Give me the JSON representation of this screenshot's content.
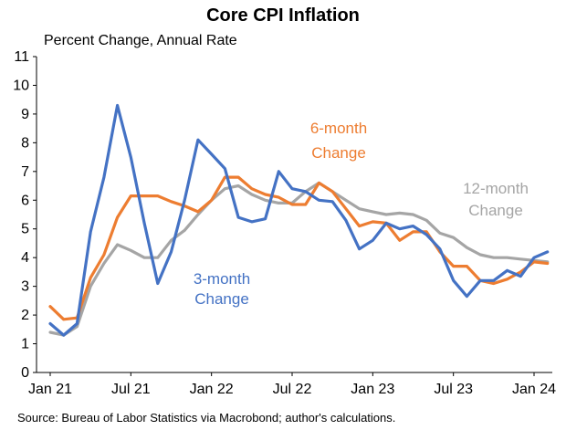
{
  "chart_data": {
    "type": "line",
    "title": "Core CPI Inflation",
    "subtitle": "Percent Change, Annual Rate",
    "source": "Source: Bureau of Labor Statistics via Macrobond; author's calculations.",
    "ylim": [
      0,
      11
    ],
    "yticks": [
      "0",
      "1",
      "2",
      "3",
      "4",
      "5",
      "6",
      "7",
      "8",
      "9",
      "10",
      "11"
    ],
    "xlim": [
      "2021-01",
      "2024-02"
    ],
    "xticks": [
      {
        "label": "Jan 21",
        "x": "2021-01"
      },
      {
        "label": "Jul 21",
        "x": "2021-07"
      },
      {
        "label": "Jan 22",
        "x": "2022-01"
      },
      {
        "label": "Jul 22",
        "x": "2022-07"
      },
      {
        "label": "Jan 23",
        "x": "2023-01"
      },
      {
        "label": "Jul 23",
        "x": "2023-07"
      },
      {
        "label": "Jan 24",
        "x": "2024-01"
      }
    ],
    "grid": false,
    "series": [
      {
        "name": "3-month Change",
        "color": "#4472c4",
        "label_lines": [
          "3-month",
          "Change"
        ],
        "points": [
          [
            "2021-01",
            1.7
          ],
          [
            "2021-02",
            1.3
          ],
          [
            "2021-03",
            1.7
          ],
          [
            "2021-04",
            4.9
          ],
          [
            "2021-05",
            6.8
          ],
          [
            "2021-06",
            9.3
          ],
          [
            "2021-07",
            7.5
          ],
          [
            "2021-08",
            5.2
          ],
          [
            "2021-09",
            3.1
          ],
          [
            "2021-10",
            4.2
          ],
          [
            "2021-11",
            6.0
          ],
          [
            "2021-12",
            8.1
          ],
          [
            "2021-13",
            7.6
          ],
          [
            "2022-02",
            7.1
          ],
          [
            "2022-03",
            5.4
          ],
          [
            "2022-04",
            5.25
          ],
          [
            "2022-05",
            5.35
          ],
          [
            "2022-06",
            7.0
          ],
          [
            "2022-07",
            6.4
          ],
          [
            "2022-08",
            6.3
          ],
          [
            "2022-09",
            6.0
          ],
          [
            "2022-10",
            5.95
          ],
          [
            "2022-11",
            5.3
          ],
          [
            "2022-12",
            4.3
          ],
          [
            "2023-01",
            4.6
          ],
          [
            "2023-02",
            5.2
          ],
          [
            "2023-03",
            5.0
          ],
          [
            "2023-04",
            5.1
          ],
          [
            "2023-05",
            4.8
          ],
          [
            "2023-06",
            4.3
          ],
          [
            "2023-07",
            3.2
          ],
          [
            "2023-08",
            2.65
          ],
          [
            "2023-09",
            3.2
          ],
          [
            "2023-10",
            3.2
          ],
          [
            "2023-11",
            3.55
          ],
          [
            "2023-12",
            3.35
          ],
          [
            "2024-01",
            4.0
          ],
          [
            "2024-02",
            4.2
          ]
        ]
      },
      {
        "name": "6-month Change",
        "color": "#ed7d31",
        "label_lines": [
          "6-month",
          "Change"
        ],
        "points": [
          [
            "2021-01",
            2.3
          ],
          [
            "2021-02",
            1.85
          ],
          [
            "2021-03",
            1.9
          ],
          [
            "2021-04",
            3.3
          ],
          [
            "2021-05",
            4.1
          ],
          [
            "2021-06",
            5.4
          ],
          [
            "2021-07",
            6.15
          ],
          [
            "2021-08",
            6.15
          ],
          [
            "2021-09",
            6.15
          ],
          [
            "2021-10",
            5.95
          ],
          [
            "2021-11",
            5.8
          ],
          [
            "2021-12",
            5.6
          ],
          [
            "2021-13",
            6.0
          ],
          [
            "2022-02",
            6.8
          ],
          [
            "2022-03",
            6.8
          ],
          [
            "2022-04",
            6.4
          ],
          [
            "2022-05",
            6.2
          ],
          [
            "2022-06",
            6.1
          ],
          [
            "2022-07",
            5.85
          ],
          [
            "2022-08",
            5.85
          ],
          [
            "2022-09",
            6.6
          ],
          [
            "2022-10",
            6.3
          ],
          [
            "2022-11",
            5.7
          ],
          [
            "2022-12",
            5.1
          ],
          [
            "2023-01",
            5.25
          ],
          [
            "2023-02",
            5.2
          ],
          [
            "2023-03",
            4.6
          ],
          [
            "2023-04",
            4.9
          ],
          [
            "2023-05",
            4.9
          ],
          [
            "2023-06",
            4.2
          ],
          [
            "2023-07",
            3.7
          ],
          [
            "2023-08",
            3.7
          ],
          [
            "2023-09",
            3.2
          ],
          [
            "2023-10",
            3.1
          ],
          [
            "2023-11",
            3.25
          ],
          [
            "2023-12",
            3.5
          ],
          [
            "2024-01",
            3.85
          ],
          [
            "2024-02",
            3.8
          ]
        ]
      },
      {
        "name": "12-month Change",
        "color": "#a5a5a5",
        "label_lines": [
          "12-month",
          "Change"
        ],
        "points": [
          [
            "2021-01",
            1.4
          ],
          [
            "2021-02",
            1.3
          ],
          [
            "2021-03",
            1.6
          ],
          [
            "2021-04",
            3.0
          ],
          [
            "2021-05",
            3.8
          ],
          [
            "2021-06",
            4.45
          ],
          [
            "2021-07",
            4.25
          ],
          [
            "2021-08",
            4.0
          ],
          [
            "2021-09",
            4.0
          ],
          [
            "2021-10",
            4.6
          ],
          [
            "2021-11",
            4.95
          ],
          [
            "2021-12",
            5.5
          ],
          [
            "2021-13",
            6.0
          ],
          [
            "2022-02",
            6.4
          ],
          [
            "2022-03",
            6.5
          ],
          [
            "2022-04",
            6.2
          ],
          [
            "2022-05",
            6.0
          ],
          [
            "2022-06",
            5.9
          ],
          [
            "2022-07",
            5.9
          ],
          [
            "2022-08",
            6.3
          ],
          [
            "2022-09",
            6.6
          ],
          [
            "2022-10",
            6.3
          ],
          [
            "2022-11",
            6.0
          ],
          [
            "2022-12",
            5.7
          ],
          [
            "2023-01",
            5.6
          ],
          [
            "2023-02",
            5.5
          ],
          [
            "2023-03",
            5.55
          ],
          [
            "2023-04",
            5.5
          ],
          [
            "2023-05",
            5.3
          ],
          [
            "2023-06",
            4.85
          ],
          [
            "2023-07",
            4.7
          ],
          [
            "2023-08",
            4.35
          ],
          [
            "2023-09",
            4.1
          ],
          [
            "2023-10",
            4.0
          ],
          [
            "2023-11",
            4.0
          ],
          [
            "2023-12",
            3.95
          ],
          [
            "2024-01",
            3.9
          ],
          [
            "2024-02",
            3.85
          ]
        ]
      }
    ]
  }
}
